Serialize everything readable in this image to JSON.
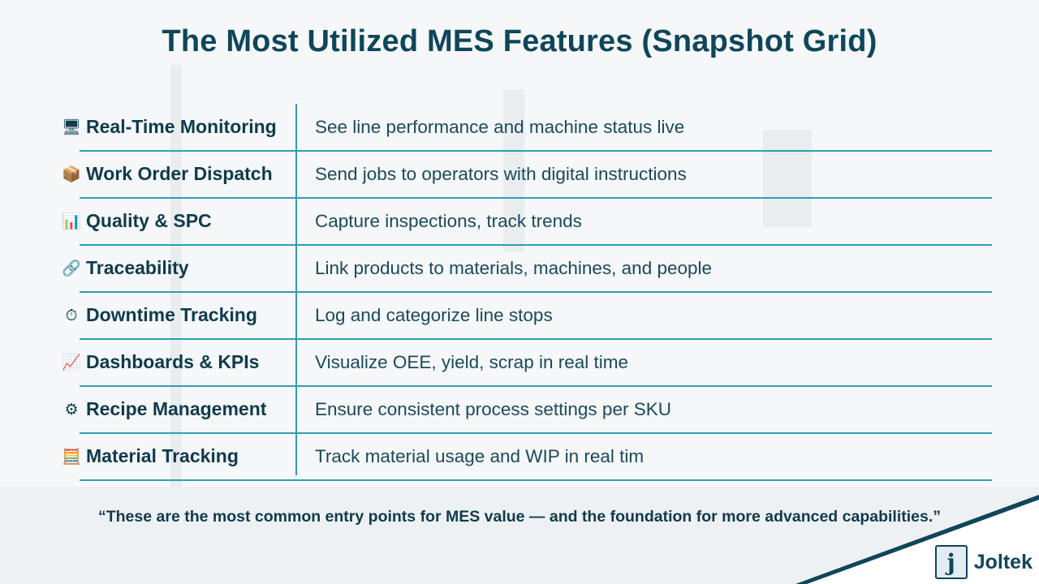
{
  "title": "The Most Utilized MES Features (Snapshot Grid)",
  "features": [
    {
      "icon": "🖥",
      "icon_name": "monitor-icon",
      "name": "Real-Time Monitoring",
      "description": "See line performance and machine status live"
    },
    {
      "icon": "📦",
      "icon_name": "package-icon",
      "name": "Work Order Dispatch",
      "description": "Send jobs to operators with digital instructions"
    },
    {
      "icon": "📊",
      "icon_name": "bar-chart-icon",
      "name": "Quality & SPC",
      "description": "Capture inspections, track trends"
    },
    {
      "icon": "🔗",
      "icon_name": "link-icon",
      "name": "Traceability",
      "description": "Link products to materials, machines, and people"
    },
    {
      "icon": "⏱",
      "icon_name": "stopwatch-icon",
      "name": "Downtime Tracking",
      "description": "Log and categorize line stops"
    },
    {
      "icon": "📈",
      "icon_name": "trend-up-chart-icon",
      "name": "Dashboards & KPIs",
      "description": "Visualize OEE, yield, scrap in real time"
    },
    {
      "icon": "⚙",
      "icon_name": "gear-icon",
      "name": "Recipe Management",
      "description": "Ensure consistent process settings per SKU"
    },
    {
      "icon": "🧮",
      "icon_name": "abacus-icon",
      "name": "Material Tracking",
      "description": "Track material usage and WIP in real tim"
    }
  ],
  "quote": "“These are the most common entry points for MES value — and the foundation for more advanced capabilities.”",
  "logo": {
    "mark": "j",
    "name": "Joltek"
  },
  "colors": {
    "title": "#0f4659",
    "grid_lines": "#2f9fae",
    "background": "#f5f7f8"
  }
}
